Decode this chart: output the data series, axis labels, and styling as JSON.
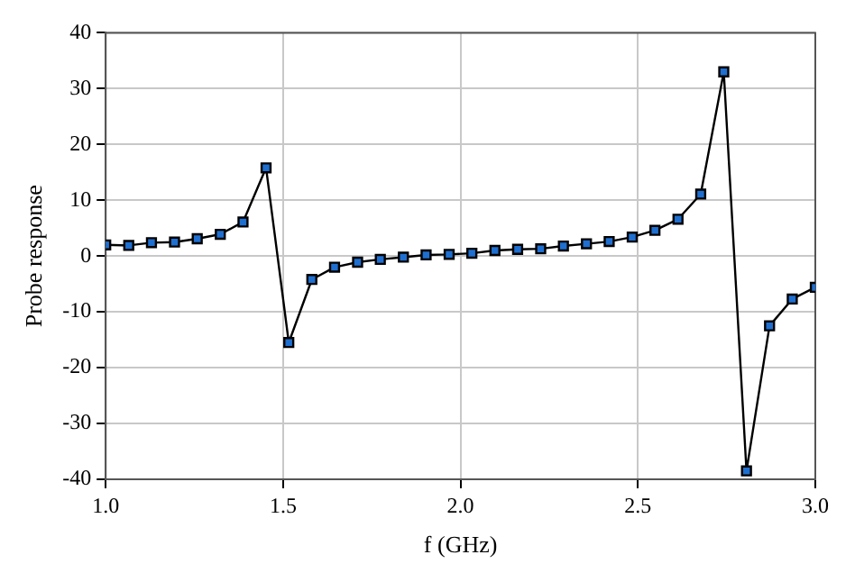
{
  "chart_data": {
    "type": "line",
    "xlabel": "f (GHz)",
    "ylabel": "Probe response",
    "x": [
      1.0,
      1.065,
      1.129,
      1.194,
      1.258,
      1.323,
      1.387,
      1.452,
      1.516,
      1.581,
      1.645,
      1.71,
      1.774,
      1.839,
      1.903,
      1.968,
      2.032,
      2.097,
      2.161,
      2.226,
      2.29,
      2.355,
      2.419,
      2.484,
      2.548,
      2.613,
      2.677,
      2.742,
      2.806,
      2.871,
      2.935,
      3.0
    ],
    "series": [
      {
        "color": "#1f6fd0",
        "values": [
          2,
          1.9,
          2.4,
          2.5,
          3.1,
          3.9,
          6.1,
          15.8,
          -15.5,
          -4.2,
          -2,
          -1.1,
          -0.6,
          -0.2,
          0.2,
          0.3,
          0.5,
          1.0,
          1.2,
          1.3,
          1.8,
          2.2,
          2.6,
          3.4,
          4.6,
          6.6,
          11.1,
          33,
          -38.5,
          -12.5,
          -7.7,
          -5.6
        ]
      }
    ],
    "xlim": [
      1.0,
      3.0
    ],
    "xticks": [
      {
        "value": 1.0,
        "label": "1.0"
      },
      {
        "value": 1.5,
        "label": "1.5"
      },
      {
        "value": 2.0,
        "label": "2.0"
      },
      {
        "value": 2.5,
        "label": "2.5"
      },
      {
        "value": 3.0,
        "label": "3.0"
      }
    ],
    "ylim": [
      -40,
      40
    ],
    "yticks": [
      -40,
      -30,
      -20,
      -10,
      0,
      10,
      20,
      30,
      40
    ],
    "grid": true,
    "marker": "square",
    "line_style": "solid",
    "legend": false
  }
}
